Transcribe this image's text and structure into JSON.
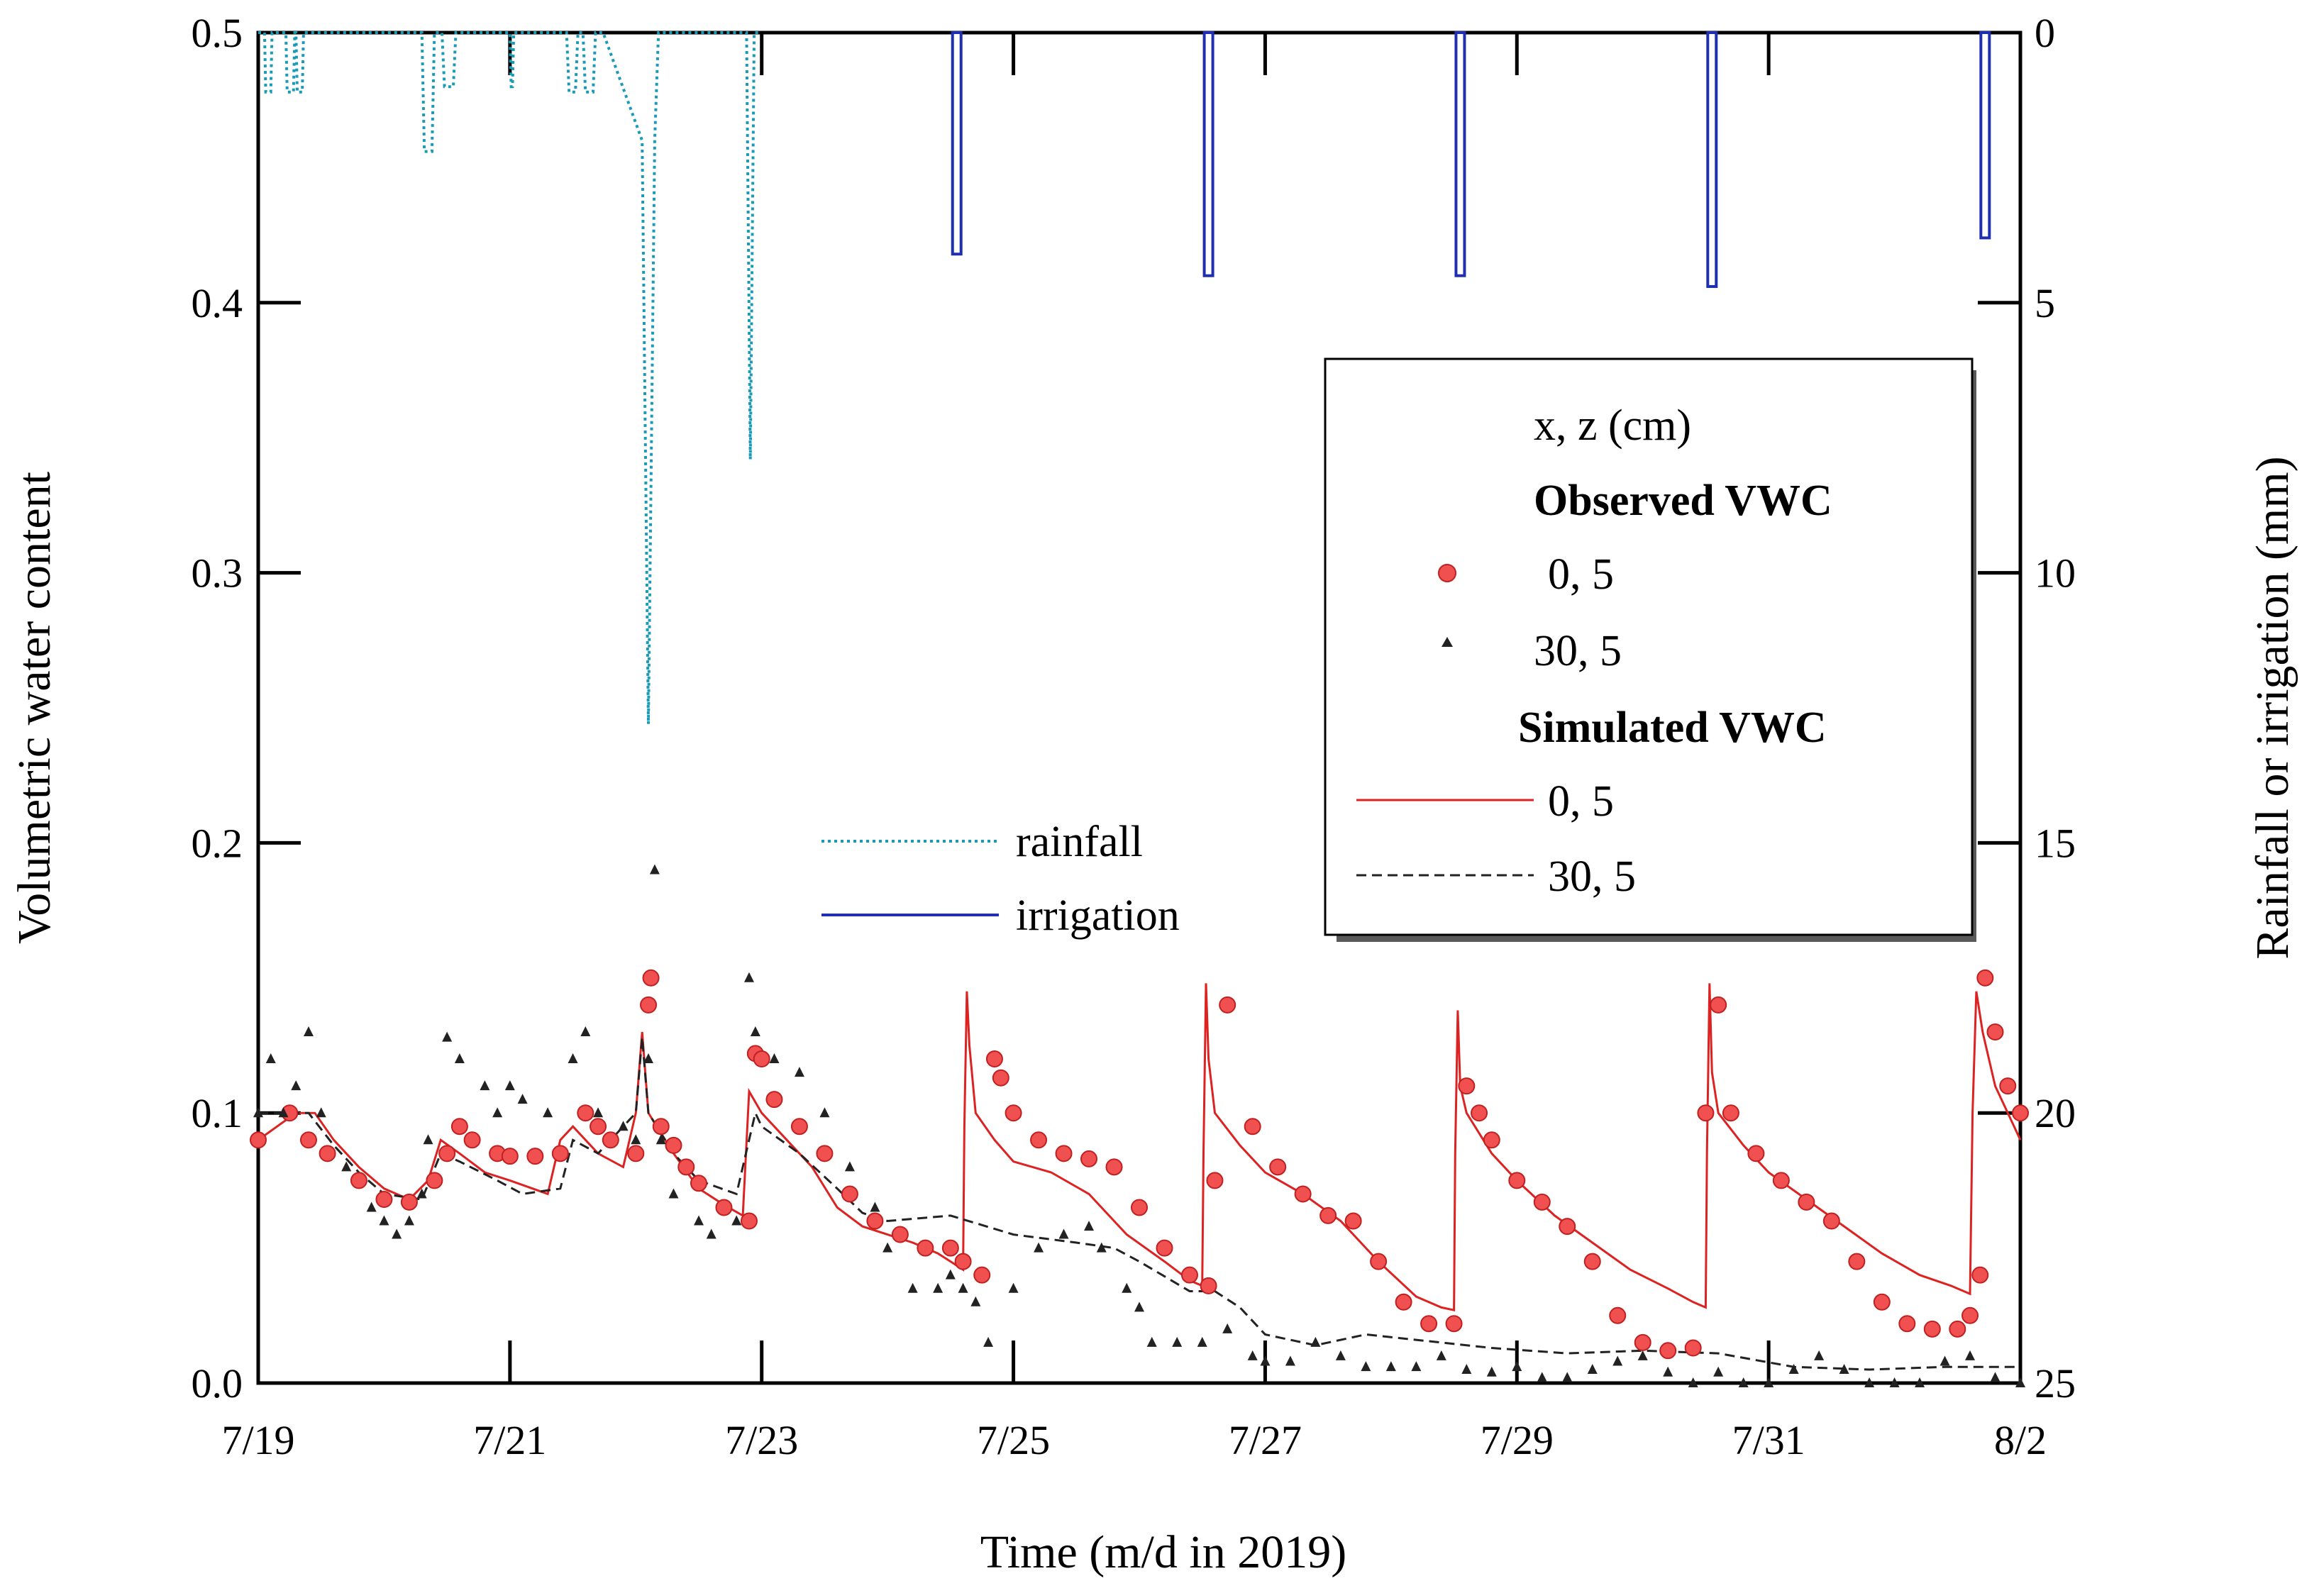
{
  "chart_data": {
    "type": "line",
    "xlabel": "Time (m/d in 2019)",
    "ylabel_left": "Volumetric water content",
    "ylabel_right": "Rainfall or irrigation (mm)",
    "xlim_days": [
      0,
      14
    ],
    "ylim_left": [
      0.0,
      0.5
    ],
    "ylim_right_inverted": [
      0,
      25
    ],
    "x_tick_labels": [
      "7/19",
      "7/21",
      "7/23",
      "7/25",
      "7/27",
      "7/29",
      "7/31",
      "8/2"
    ],
    "x_tick_days": [
      0,
      2,
      4,
      6,
      8,
      10,
      12,
      14
    ],
    "y_left_ticks": [
      0.0,
      0.1,
      0.2,
      0.3,
      0.4,
      0.5
    ],
    "y_left_tick_labels": [
      "0.0",
      "0.1",
      "0.2",
      "0.3",
      "0.4",
      "0.5"
    ],
    "y_right_ticks": [
      0,
      5,
      10,
      15,
      20,
      25
    ],
    "y_right_tick_labels": [
      "0",
      "5",
      "10",
      "15",
      "20",
      "25"
    ],
    "rainfall_irrigation_legend": [
      {
        "name": "rainfall",
        "color": "#1a9bb5",
        "style": "dotted"
      },
      {
        "name": "irrigation",
        "color": "#1f2fb0",
        "style": "solid"
      }
    ],
    "rainfall_mm": {
      "x": [
        0,
        0.05,
        0.06,
        0.1,
        0.11,
        0.22,
        0.23,
        0.28,
        0.29,
        0.3,
        0.31,
        0.35,
        0.36,
        1.3,
        1.32,
        1.38,
        1.4,
        1.46,
        1.48,
        1.55,
        1.57,
        2.0,
        2.01,
        2.02,
        2.03,
        2.45,
        2.47,
        2.52,
        2.54,
        2.58,
        2.6,
        2.66,
        2.68,
        2.72,
        2.74,
        3.05,
        3.1,
        3.15,
        3.18,
        3.25,
        3.28,
        3.88,
        3.91,
        3.94,
        4.0
      ],
      "values": [
        0,
        0,
        1.1,
        1.1,
        0,
        0,
        1.1,
        1.1,
        0,
        0,
        1.1,
        1.1,
        0,
        0,
        2.2,
        2.2,
        0,
        0,
        1.0,
        1.0,
        0,
        0,
        1.0,
        1.0,
        0,
        0,
        1.1,
        1.1,
        0,
        0,
        1.1,
        1.1,
        0,
        0,
        0,
        2.0,
        12.8,
        2.0,
        0,
        0,
        0,
        0,
        7.9,
        0,
        0
      ]
    },
    "irrigation_events": [
      {
        "day": 5.55,
        "mm": 4.1
      },
      {
        "day": 7.55,
        "mm": 4.5
      },
      {
        "day": 9.55,
        "mm": 4.5
      },
      {
        "day": 11.55,
        "mm": 4.7
      },
      {
        "day": 13.72,
        "mm": 3.8
      }
    ],
    "legend": {
      "header": "x, z (cm)",
      "observed_title": "Observed VWC",
      "simulated_title": "Simulated VWC",
      "entries": [
        {
          "group": "observed",
          "label": "0, 5",
          "marker": "circle",
          "color": "#ee3333"
        },
        {
          "group": "observed",
          "label": "30, 5",
          "marker": "triangle",
          "color": "#222222"
        },
        {
          "group": "simulated",
          "label": "0, 5",
          "line": "solid",
          "color": "#dd2222"
        },
        {
          "group": "simulated",
          "label": "30, 5",
          "line": "dashed",
          "color": "#222222"
        }
      ]
    },
    "series": [
      {
        "name": "Observed VWC 0, 5",
        "marker": "circle",
        "color": "#ee3333",
        "x": [
          0,
          0.25,
          0.4,
          0.55,
          0.8,
          1.0,
          1.2,
          1.4,
          1.5,
          1.6,
          1.7,
          1.9,
          2.0,
          2.2,
          2.4,
          2.6,
          2.7,
          2.8,
          3.0,
          3.1,
          3.12,
          3.2,
          3.3,
          3.4,
          3.5,
          3.7,
          3.9,
          3.95,
          4.0,
          4.1,
          4.3,
          4.5,
          4.7,
          4.9,
          5.1,
          5.3,
          5.5,
          5.6,
          5.75,
          5.85,
          5.9,
          6.0,
          6.2,
          6.4,
          6.6,
          6.8,
          7.0,
          7.2,
          7.4,
          7.55,
          7.6,
          7.7,
          7.9,
          8.1,
          8.3,
          8.5,
          8.7,
          8.9,
          9.1,
          9.3,
          9.5,
          9.6,
          9.7,
          9.8,
          10.0,
          10.2,
          10.4,
          10.6,
          10.8,
          11.0,
          11.2,
          11.4,
          11.5,
          11.6,
          11.7,
          11.9,
          12.1,
          12.3,
          12.5,
          12.7,
          12.9,
          13.1,
          13.3,
          13.5,
          13.6,
          13.68,
          13.72,
          13.8,
          13.9,
          14.0
        ],
        "values": [
          0.09,
          0.1,
          0.09,
          0.085,
          0.075,
          0.068,
          0.067,
          0.075,
          0.085,
          0.095,
          0.09,
          0.085,
          0.084,
          0.084,
          0.085,
          0.1,
          0.095,
          0.09,
          0.085,
          0.14,
          0.15,
          0.095,
          0.088,
          0.08,
          0.074,
          0.065,
          0.06,
          0.122,
          0.12,
          0.105,
          0.095,
          0.085,
          0.07,
          0.06,
          0.055,
          0.05,
          0.05,
          0.045,
          0.04,
          0.12,
          0.113,
          0.1,
          0.09,
          0.085,
          0.083,
          0.08,
          0.065,
          0.05,
          0.04,
          0.036,
          0.075,
          0.14,
          0.095,
          0.08,
          0.07,
          0.062,
          0.06,
          0.045,
          0.03,
          0.022,
          0.022,
          0.11,
          0.1,
          0.09,
          0.075,
          0.067,
          0.058,
          0.045,
          0.025,
          0.015,
          0.012,
          0.013,
          0.1,
          0.14,
          0.1,
          0.085,
          0.075,
          0.067,
          0.06,
          0.045,
          0.03,
          0.022,
          0.02,
          0.02,
          0.025,
          0.04,
          0.15,
          0.13,
          0.11,
          0.1
        ]
      },
      {
        "name": "Observed VWC 30, 5",
        "marker": "triangle",
        "color": "#222222",
        "x": [
          0,
          0.1,
          0.2,
          0.3,
          0.4,
          0.5,
          0.7,
          0.9,
          1.0,
          1.1,
          1.2,
          1.3,
          1.35,
          1.5,
          1.6,
          1.8,
          1.9,
          2.0,
          2.1,
          2.3,
          2.5,
          2.6,
          2.7,
          2.9,
          3.0,
          3.1,
          3.15,
          3.2,
          3.3,
          3.5,
          3.6,
          3.8,
          3.9,
          3.95,
          4.1,
          4.3,
          4.5,
          4.7,
          4.9,
          5.0,
          5.2,
          5.4,
          5.5,
          5.6,
          5.7,
          5.8,
          6.0,
          6.2,
          6.4,
          6.6,
          6.7,
          6.9,
          7.0,
          7.1,
          7.3,
          7.5,
          7.7,
          7.9,
          8.0,
          8.2,
          8.4,
          8.6,
          8.8,
          9.0,
          9.2,
          9.4,
          9.6,
          9.8,
          10.0,
          10.2,
          10.4,
          10.6,
          10.8,
          11.0,
          11.2,
          11.4,
          11.6,
          11.8,
          12.0,
          12.2,
          12.4,
          12.6,
          12.8,
          13.0,
          13.2,
          13.4,
          13.6,
          13.8,
          14.0
        ],
        "values": [
          0.1,
          0.12,
          0.1,
          0.11,
          0.13,
          0.1,
          0.08,
          0.065,
          0.06,
          0.055,
          0.06,
          0.07,
          0.09,
          0.128,
          0.12,
          0.11,
          0.1,
          0.11,
          0.105,
          0.1,
          0.12,
          0.13,
          0.1,
          0.095,
          0.09,
          0.12,
          0.19,
          0.09,
          0.07,
          0.06,
          0.055,
          0.06,
          0.15,
          0.13,
          0.12,
          0.115,
          0.1,
          0.08,
          0.065,
          0.05,
          0.035,
          0.035,
          0.04,
          0.035,
          0.03,
          0.015,
          0.035,
          0.05,
          0.055,
          0.058,
          0.05,
          0.035,
          0.028,
          0.015,
          0.015,
          0.015,
          0.02,
          0.01,
          0.008,
          0.008,
          0.015,
          0.01,
          0.006,
          0.006,
          0.006,
          0.01,
          0.005,
          0.004,
          0.006,
          0.002,
          0.002,
          0.005,
          0.008,
          0.01,
          0.004,
          0.0,
          0.004,
          0.0,
          0.0,
          0.005,
          0.01,
          0.005,
          0.0,
          0.0,
          0.0,
          0.008,
          0.01,
          0.002,
          0.0
        ]
      },
      {
        "name": "Simulated VWC 0, 5",
        "line": "solid",
        "color": "#dd2222",
        "x": [
          0,
          0.15,
          0.3,
          0.45,
          0.6,
          0.8,
          1.0,
          1.2,
          1.35,
          1.45,
          1.6,
          1.8,
          2.0,
          2.3,
          2.4,
          2.5,
          2.7,
          2.9,
          3.0,
          3.05,
          3.1,
          3.3,
          3.5,
          3.7,
          3.85,
          3.9,
          4.0,
          4.2,
          4.4,
          4.6,
          4.8,
          5.0,
          5.2,
          5.4,
          5.5,
          5.6,
          5.61,
          5.63,
          5.65,
          5.7,
          5.85,
          6.0,
          6.3,
          6.6,
          6.9,
          7.2,
          7.4,
          7.5,
          7.51,
          7.53,
          7.55,
          7.6,
          7.8,
          8.0,
          8.3,
          8.6,
          8.9,
          9.2,
          9.4,
          9.5,
          9.51,
          9.53,
          9.55,
          9.6,
          9.8,
          10.0,
          10.3,
          10.6,
          10.9,
          11.2,
          11.4,
          11.5,
          11.51,
          11.53,
          11.55,
          11.6,
          11.8,
          12.0,
          12.3,
          12.6,
          12.9,
          13.2,
          13.45,
          13.6,
          13.62,
          13.65,
          13.7,
          13.8,
          13.9,
          14.0
        ],
        "values": [
          0.09,
          0.095,
          0.1,
          0.1,
          0.09,
          0.08,
          0.072,
          0.068,
          0.075,
          0.09,
          0.085,
          0.078,
          0.075,
          0.07,
          0.09,
          0.095,
          0.085,
          0.08,
          0.1,
          0.13,
          0.1,
          0.085,
          0.072,
          0.066,
          0.062,
          0.108,
          0.1,
          0.09,
          0.08,
          0.065,
          0.058,
          0.055,
          0.052,
          0.048,
          0.045,
          0.042,
          0.095,
          0.145,
          0.125,
          0.1,
          0.09,
          0.082,
          0.078,
          0.07,
          0.055,
          0.045,
          0.038,
          0.036,
          0.085,
          0.148,
          0.12,
          0.1,
          0.088,
          0.078,
          0.07,
          0.06,
          0.045,
          0.032,
          0.028,
          0.027,
          0.085,
          0.138,
          0.11,
          0.1,
          0.085,
          0.075,
          0.062,
          0.052,
          0.042,
          0.035,
          0.03,
          0.028,
          0.085,
          0.148,
          0.115,
          0.1,
          0.088,
          0.078,
          0.068,
          0.058,
          0.048,
          0.04,
          0.036,
          0.033,
          0.1,
          0.145,
          0.13,
          0.11,
          0.1,
          0.09
        ]
      },
      {
        "name": "Simulated VWC 30, 5",
        "line": "dashed",
        "color": "#222222",
        "x": [
          0,
          0.2,
          0.4,
          0.6,
          0.8,
          1.0,
          1.3,
          1.45,
          1.6,
          1.9,
          2.1,
          2.4,
          2.5,
          2.7,
          3.0,
          3.05,
          3.1,
          3.3,
          3.5,
          3.8,
          3.95,
          4.0,
          4.3,
          4.6,
          4.8,
          5.0,
          5.5,
          6.0,
          6.5,
          6.8,
          7.0,
          7.4,
          7.6,
          7.8,
          8.0,
          8.4,
          8.8,
          9.2,
          9.8,
          10.4,
          11.0,
          11.6,
          12.2,
          12.8,
          13.4,
          14.0
        ],
        "values": [
          0.1,
          0.1,
          0.1,
          0.088,
          0.078,
          0.07,
          0.068,
          0.085,
          0.082,
          0.075,
          0.07,
          0.072,
          0.09,
          0.085,
          0.1,
          0.128,
          0.1,
          0.085,
          0.075,
          0.07,
          0.1,
          0.095,
          0.085,
          0.072,
          0.063,
          0.06,
          0.062,
          0.055,
          0.052,
          0.05,
          0.045,
          0.034,
          0.034,
          0.028,
          0.018,
          0.014,
          0.018,
          0.016,
          0.013,
          0.011,
          0.012,
          0.011,
          0.006,
          0.005,
          0.006,
          0.006
        ]
      }
    ]
  }
}
